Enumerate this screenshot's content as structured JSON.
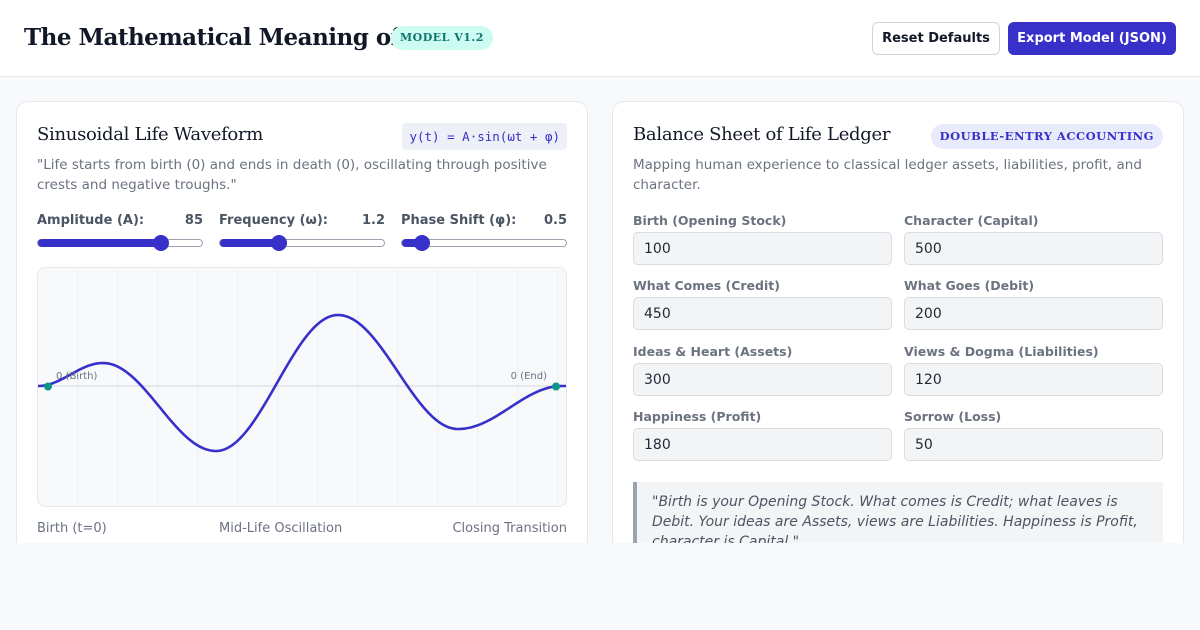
{
  "header": {
    "title": "The Mathematical Meaning of Life",
    "version_badge": "MODEL V1.2",
    "reset_label": "Reset Defaults",
    "export_label": "Export Model (JSON)"
  },
  "waveform": {
    "title": "Sinusoidal Life Waveform",
    "formula": "y(t) = A·sin(ωt + φ)",
    "description": "\"Life starts from birth (0) and ends in death (0), oscillating through positive crests and negative troughs.\"",
    "sliders": [
      {
        "label": "Amplitude (A):",
        "value": "85",
        "min": 0,
        "max": 115,
        "level": 85
      },
      {
        "label": "Frequency (ω):",
        "value": "1.2",
        "min": 0,
        "max": 3.4,
        "level": 1.2
      },
      {
        "label": "Phase Shift (φ):",
        "value": "0.5",
        "min": 0,
        "max": 4.25,
        "level": 0.5
      }
    ],
    "start_label": "0 (Birth)",
    "end_label": "0 (End)",
    "footer": {
      "left": "Birth (t=0)",
      "center": "Mid-Life Oscillation",
      "right": "Closing Transition"
    },
    "colors": {
      "wave": "#3730c9",
      "endpoint": "#0d9488",
      "accent": "#3730c9"
    }
  },
  "ledger": {
    "title": "Balance Sheet of Life Ledger",
    "badge": "DOUBLE-ENTRY ACCOUNTING",
    "description": "Mapping human experience to classical ledger assets, liabilities, profit, and character.",
    "fields": [
      {
        "label": "Birth (Opening Stock)",
        "value": "100"
      },
      {
        "label": "Character (Capital)",
        "value": "500"
      },
      {
        "label": "What Comes (Credit)",
        "value": "450"
      },
      {
        "label": "What Goes (Debit)",
        "value": "200"
      },
      {
        "label": "Ideas & Heart (Assets)",
        "value": "300"
      },
      {
        "label": "Views & Dogma (Liabilities)",
        "value": "120"
      },
      {
        "label": "Happiness (Profit)",
        "value": "180"
      },
      {
        "label": "Sorrow (Loss)",
        "value": "50"
      }
    ],
    "quote": "\"Birth is your Opening Stock. What comes is Credit; what leaves is Debit. Your ideas are Assets, views are Liabilities. Happiness is Profit, character is Capital.\""
  }
}
